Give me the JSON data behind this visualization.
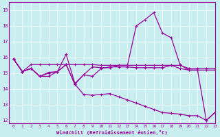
{
  "xlabel": "Windchill (Refroidissement éolien,°C)",
  "background_color": "#c8eef0",
  "line_color": "#990099",
  "grid_color": "#ffffff",
  "xlim": [
    -0.5,
    23
  ],
  "ylim": [
    11.8,
    19.5
  ],
  "yticks": [
    12,
    13,
    14,
    15,
    16,
    17,
    18,
    19
  ],
  "xticks": [
    0,
    1,
    2,
    3,
    4,
    5,
    6,
    7,
    8,
    9,
    10,
    11,
    12,
    13,
    14,
    15,
    16,
    17,
    18,
    19,
    20,
    21,
    22,
    23
  ],
  "line1_flat": {
    "x": [
      0,
      1,
      2,
      3,
      4,
      5,
      6,
      7,
      8,
      9,
      10,
      11,
      12,
      13,
      14,
      15,
      16,
      17,
      18,
      19,
      20,
      21,
      22,
      23
    ],
    "y": [
      15.9,
      15.1,
      15.55,
      15.55,
      15.55,
      15.55,
      15.55,
      15.55,
      15.55,
      15.55,
      15.5,
      15.5,
      15.5,
      15.5,
      15.5,
      15.5,
      15.5,
      15.5,
      15.5,
      15.5,
      15.3,
      15.3,
      15.3,
      15.3
    ]
  },
  "line2_wavy": {
    "x": [
      0,
      1,
      2,
      3,
      4,
      5,
      6,
      7,
      8,
      9,
      10,
      11,
      12,
      13,
      14,
      15,
      16,
      17,
      18,
      19,
      20,
      21,
      22,
      23
    ],
    "y": [
      15.9,
      15.1,
      15.3,
      14.8,
      15.0,
      15.1,
      15.55,
      14.3,
      14.9,
      14.8,
      15.3,
      15.4,
      15.4,
      15.4,
      15.35,
      15.35,
      15.35,
      15.35,
      15.5,
      15.3,
      15.2,
      15.2,
      15.2,
      15.2
    ]
  },
  "line3_peak": {
    "x": [
      0,
      1,
      2,
      3,
      4,
      5,
      6,
      7,
      8,
      9,
      10,
      11,
      12,
      13,
      14,
      15,
      16,
      17,
      18,
      19,
      20,
      21,
      22,
      23
    ],
    "y": [
      15.9,
      15.1,
      15.3,
      14.8,
      15.05,
      15.1,
      16.2,
      14.35,
      14.9,
      15.4,
      15.35,
      15.35,
      15.5,
      15.5,
      18.0,
      18.4,
      18.85,
      17.55,
      17.25,
      15.55,
      15.2,
      15.2,
      12.0,
      12.5
    ]
  },
  "line4_drop": {
    "x": [
      0,
      1,
      2,
      3,
      4,
      5,
      6,
      7,
      8,
      9,
      10,
      11,
      12,
      13,
      14,
      15,
      16,
      17,
      18,
      19,
      20,
      21,
      22,
      23
    ],
    "y": [
      15.9,
      15.1,
      15.3,
      14.8,
      14.8,
      15.1,
      15.55,
      14.3,
      13.65,
      13.6,
      13.65,
      13.7,
      13.5,
      13.3,
      13.1,
      12.9,
      12.7,
      12.5,
      12.45,
      12.4,
      12.3,
      12.3,
      12.0,
      12.5
    ]
  }
}
